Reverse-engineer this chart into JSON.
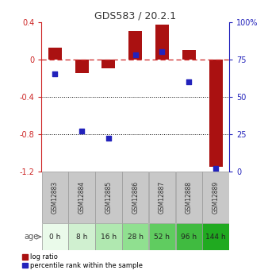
{
  "title": "GDS583 / 20.2.1",
  "samples": [
    "GSM12883",
    "GSM12884",
    "GSM12885",
    "GSM12886",
    "GSM12887",
    "GSM12888",
    "GSM12889"
  ],
  "ages": [
    "0 h",
    "8 h",
    "16 h",
    "28 h",
    "52 h",
    "96 h",
    "144 h"
  ],
  "log_ratio": [
    0.12,
    -0.15,
    -0.1,
    0.3,
    0.37,
    0.1,
    -1.15
  ],
  "percentile_rank": [
    65,
    27,
    22,
    78,
    80,
    60,
    2
  ],
  "ylim_left": [
    -1.2,
    0.4
  ],
  "ylim_right": [
    0,
    100
  ],
  "bar_color": "#aa1111",
  "dot_color": "#2222bb",
  "dashed_line_color": "#cc2222",
  "grid_color": "#000000",
  "bg_color": "#ffffff",
  "gsm_bg_color": "#c8c8c8",
  "age_colors": [
    "#eafaea",
    "#d0f0d0",
    "#b0e8b0",
    "#90e090",
    "#60cc60",
    "#40bb40",
    "#20aa20"
  ],
  "bar_width": 0.5,
  "left_yticks": [
    0.4,
    0.0,
    -0.4,
    -0.8,
    -1.2
  ],
  "left_yticklabels": [
    "0.4",
    "0",
    "-0.4",
    "-0.8",
    "-1.2"
  ],
  "right_yticks": [
    0,
    25,
    50,
    75,
    100
  ],
  "right_yticklabels": [
    "0",
    "25",
    "50",
    "75",
    "100%"
  ]
}
